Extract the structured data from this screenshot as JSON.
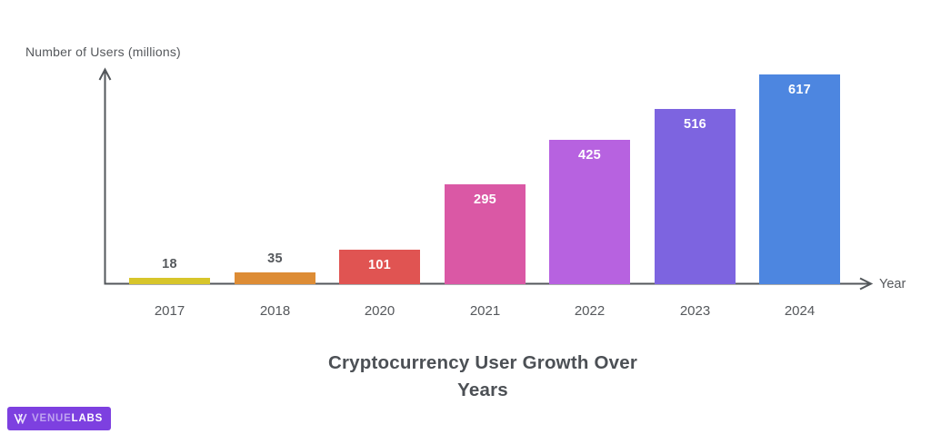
{
  "chart_data": {
    "type": "bar",
    "title": "Cryptocurrency User Growth Over Years",
    "ylabel": "Number of Users (millions)",
    "xlabel": "Year",
    "categories": [
      "2017",
      "2018",
      "2020",
      "2021",
      "2022",
      "2023",
      "2024"
    ],
    "values": [
      18,
      35,
      101,
      295,
      425,
      516,
      617
    ],
    "bar_colors": [
      "#d7c52b",
      "#dd8c35",
      "#e05452",
      "#da58a5",
      "#b762e0",
      "#7d64e0",
      "#4d86e0"
    ],
    "ylim": [
      0,
      650
    ],
    "grid": false,
    "legend": "none",
    "value_labels_shown": true
  },
  "colors": {
    "axis": "#53575b",
    "tick_text": "#55585c",
    "title_text": "#4c5055",
    "value_label_inside": "#ffffff",
    "value_label_outside": "#55585c"
  },
  "branding": {
    "logo_text_primary": "VENUE",
    "logo_text_secondary": "LABS",
    "logo_background": "#7d40e0",
    "logo_primary_color": "#bfa3f0",
    "logo_icon": "double-chevron-v-icon"
  }
}
